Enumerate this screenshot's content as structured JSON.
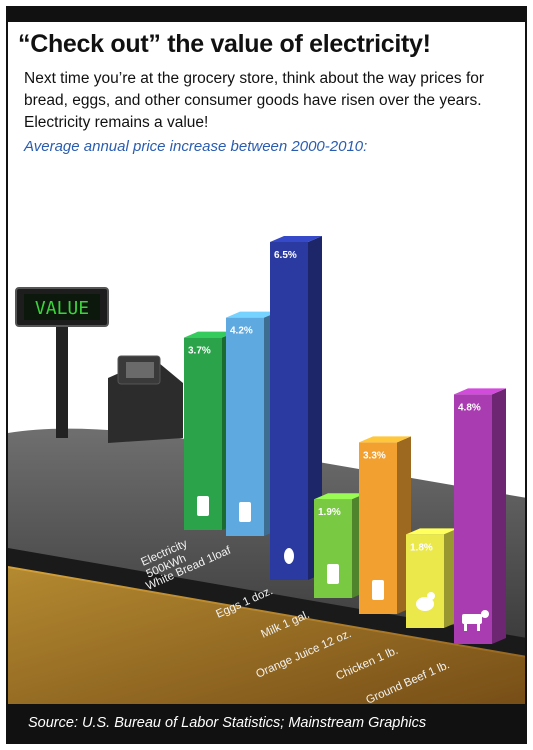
{
  "header": {
    "title": "“Check out” the value of electricity!",
    "body": "Next time you’re at the grocery store, think about the way prices for bread, eggs, and other consumer goods have risen over the years. Electricity remains a value!"
  },
  "register": {
    "display_text": "VALUE",
    "display_color": "#3cd23c"
  },
  "footer": {
    "source": "Source:  U.S. Bureau of Labor Statistics; Mainstream Graphics"
  },
  "chart_data": {
    "type": "bar",
    "title": "Average annual price increase between 2000-2010:",
    "categories": [
      "Electricity 500kWh",
      "White Bread 1loaf",
      "Eggs 1 doz.",
      "Milk 1 gal.",
      "Orange Juice 12 oz.",
      "Chicken 1 lb.",
      "Ground Beef 1 lb."
    ],
    "category_lines": [
      [
        "Electricity",
        "500kWh"
      ],
      [
        "White Bread 1loaf"
      ],
      [
        "Eggs 1 doz."
      ],
      [
        "Milk 1 gal."
      ],
      [
        "Orange Juice 12 oz."
      ],
      [
        "Chicken 1 lb."
      ],
      [
        "Ground Beef 1 lb."
      ]
    ],
    "values": [
      3.7,
      4.2,
      6.5,
      1.9,
      3.3,
      1.8,
      4.8
    ],
    "value_labels": [
      "3.7%",
      "4.2%",
      "6.5%",
      "1.9%",
      "3.3%",
      "1.8%",
      "4.8%"
    ],
    "colors": [
      "#2aa34a",
      "#5ea9e0",
      "#2b3aa0",
      "#7ac943",
      "#f2a030",
      "#eae84a",
      "#a83cb0"
    ],
    "icons": [
      "electric-meter-icon",
      "bread-icon",
      "egg-icon",
      "milk-jug-icon",
      "juice-carton-icon",
      "chicken-icon",
      "cow-icon"
    ],
    "units": "%"
  }
}
